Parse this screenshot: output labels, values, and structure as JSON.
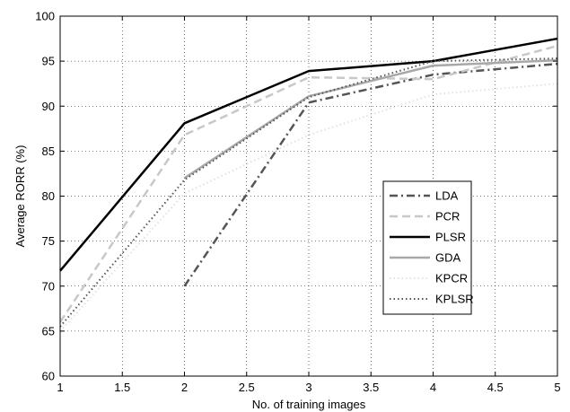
{
  "chart_data": {
    "type": "line",
    "title": "",
    "xlabel": "No. of training images",
    "ylabel": "Average RORR (%)",
    "xlim": [
      1,
      5
    ],
    "ylim": [
      60,
      100
    ],
    "xticks": [
      1,
      1.5,
      2,
      2.5,
      3,
      3.5,
      4,
      4.5,
      5
    ],
    "xtick_labels": [
      "1",
      "1.5",
      "2",
      "2.5",
      "3",
      "3.5",
      "4",
      "4.5",
      "5"
    ],
    "yticks": [
      60,
      65,
      70,
      75,
      80,
      85,
      90,
      95,
      100
    ],
    "ytick_labels": [
      "60",
      "65",
      "70",
      "75",
      "80",
      "85",
      "90",
      "95",
      "100"
    ],
    "grid": true,
    "legend_position": "right",
    "series": [
      {
        "name": "LDA",
        "x": [
          2,
          3,
          4,
          5
        ],
        "values": [
          70.0,
          90.4,
          93.5,
          94.7
        ],
        "color": "#555555",
        "style": "dashdot",
        "width": 2.5
      },
      {
        "name": "PCR",
        "x": [
          1,
          2,
          3,
          4,
          5
        ],
        "values": [
          66.0,
          86.8,
          93.2,
          93.0,
          96.7
        ],
        "color": "#c8c8c8",
        "style": "dashed",
        "width": 2.5
      },
      {
        "name": "PLSR",
        "x": [
          1,
          2,
          3,
          4,
          5
        ],
        "values": [
          71.7,
          88.1,
          93.9,
          95.0,
          97.5
        ],
        "color": "#000000",
        "style": "solid",
        "width": 2.5
      },
      {
        "name": "GDA",
        "x": [
          2,
          3,
          4,
          5
        ],
        "values": [
          82.0,
          91.1,
          94.5,
          95.1
        ],
        "color": "#a8a8a8",
        "style": "solid",
        "width": 2.5
      },
      {
        "name": "KPCR",
        "x": [
          1,
          2,
          3,
          4,
          5
        ],
        "values": [
          65.0,
          80.3,
          86.8,
          91.3,
          92.5
        ],
        "color": "#e2e2e2",
        "style": "dotted",
        "width": 2
      },
      {
        "name": "KPLSR",
        "x": [
          1,
          2,
          3,
          4,
          5
        ],
        "values": [
          65.5,
          81.8,
          91.0,
          95.0,
          95.3
        ],
        "color": "#555555",
        "style": "dotted",
        "width": 2
      }
    ]
  }
}
